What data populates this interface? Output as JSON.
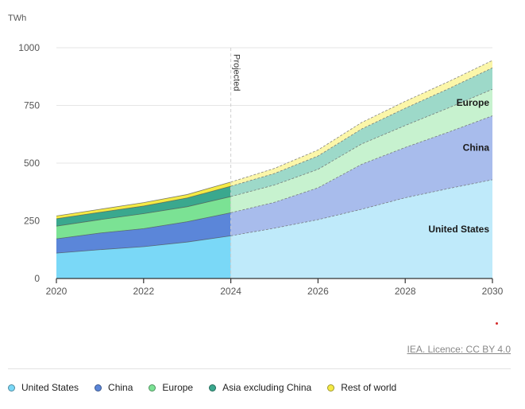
{
  "chart_data": {
    "type": "area",
    "stacked": true,
    "unit_label": "TWh",
    "x": [
      2020,
      2021,
      2022,
      2023,
      2024,
      2025,
      2026,
      2027,
      2028,
      2029,
      2030
    ],
    "xticks": [
      "2020",
      "2022",
      "2024",
      "2026",
      "2028",
      "2030"
    ],
    "yticks": [
      "0",
      "250",
      "500",
      "750",
      "1000"
    ],
    "ylim": [
      0,
      1000
    ],
    "projection_start": 2024,
    "projection_label": "Projected",
    "series": [
      {
        "name": "United States",
        "color": "#7ad8f7",
        "projected_color": "#bfeafa",
        "values": [
          110,
          125,
          138,
          158,
          185,
          218,
          255,
          300,
          350,
          390,
          428
        ]
      },
      {
        "name": "China",
        "color": "#5b86d9",
        "projected_color": "#a8bcec",
        "values": [
          62,
          72,
          78,
          88,
          100,
          112,
          138,
          195,
          218,
          245,
          277
        ]
      },
      {
        "name": "Europe",
        "color": "#7be294",
        "projected_color": "#c7f2cf",
        "values": [
          55,
          58,
          65,
          65,
          70,
          75,
          80,
          88,
          95,
          105,
          115
        ]
      },
      {
        "name": "Asia excluding China",
        "color": "#3aa88e",
        "projected_color": "#9dd9c9",
        "values": [
          32,
          32,
          33,
          38,
          45,
          50,
          58,
          65,
          75,
          83,
          93
        ]
      },
      {
        "name": "Rest of world",
        "color": "#f5ea45",
        "projected_color": "#fbf6a9",
        "values": [
          12,
          13,
          15,
          15,
          18,
          22,
          26,
          28,
          30,
          31,
          32
        ]
      }
    ],
    "annotations": [
      {
        "text": "United States",
        "series": "United States",
        "x": 2030
      },
      {
        "text": "China",
        "series": "China",
        "x": 2030
      },
      {
        "text": "Europe",
        "series": "Europe",
        "x": 2030
      }
    ]
  },
  "source": {
    "label": "IEA. Licence: CC BY 4.0"
  },
  "legend": [
    {
      "name": "United States",
      "color": "#7ad8f7"
    },
    {
      "name": "China",
      "color": "#5b86d9"
    },
    {
      "name": "Europe",
      "color": "#7be294"
    },
    {
      "name": "Asia excluding China",
      "color": "#3aa88e"
    },
    {
      "name": "Rest of world",
      "color": "#f5ea45"
    }
  ]
}
